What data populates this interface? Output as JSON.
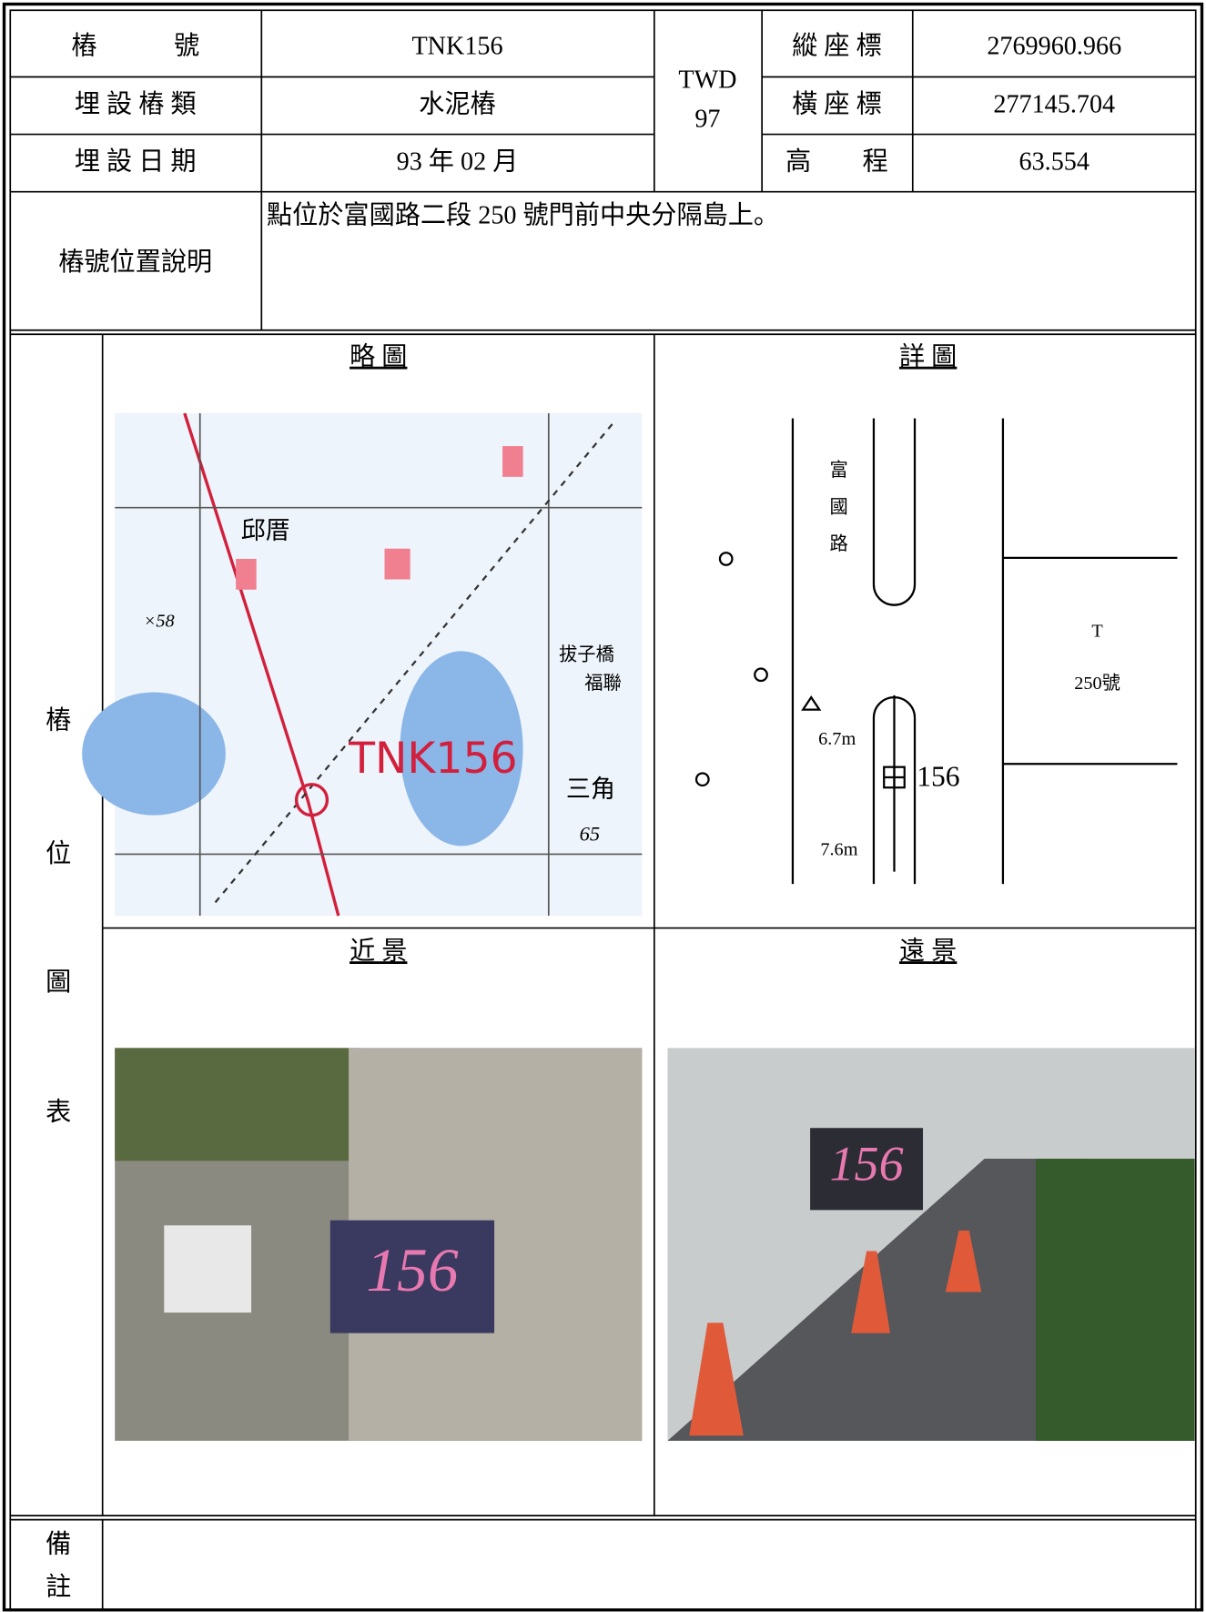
{
  "header": {
    "point": {
      "label": "樁　　　號",
      "value": "TNK156"
    },
    "type": {
      "label": "埋 設 樁 類",
      "value": "水泥樁"
    },
    "date": {
      "label": "埋 設 日 期",
      "value": "93 年 02 月"
    },
    "datum": [
      "TWD",
      "97"
    ],
    "north": {
      "label": "縱 座 標",
      "value": "2769960.966"
    },
    "east": {
      "label": "橫 座 標",
      "value": "277145.704"
    },
    "elevation": {
      "label": "高　　程",
      "value": "63.554"
    }
  },
  "description": {
    "label": "樁號位置說明",
    "text": "點位於富國路二段 250 號門前中央分隔島上。"
  },
  "figure": {
    "label": [
      "樁",
      "位",
      "圖",
      "表"
    ],
    "sketch_title": "略 圖",
    "detail_title": "詳 圖",
    "near_title": "近 景",
    "far_title": "遠 景"
  },
  "sketch_map": {
    "labels": [
      "邱厝",
      "×58",
      "拔子橋",
      "福聯",
      "TNK156",
      "三角",
      "65"
    ]
  },
  "detail_map": {
    "road": [
      "富",
      "國",
      "路"
    ],
    "building": [
      "T",
      "250號"
    ],
    "distances": [
      "6.7m",
      "7.6m"
    ],
    "point": "156"
  },
  "photos": {
    "near_sign": "156",
    "far_sign": "156"
  },
  "remarks": {
    "label": [
      "備",
      "註"
    ]
  }
}
